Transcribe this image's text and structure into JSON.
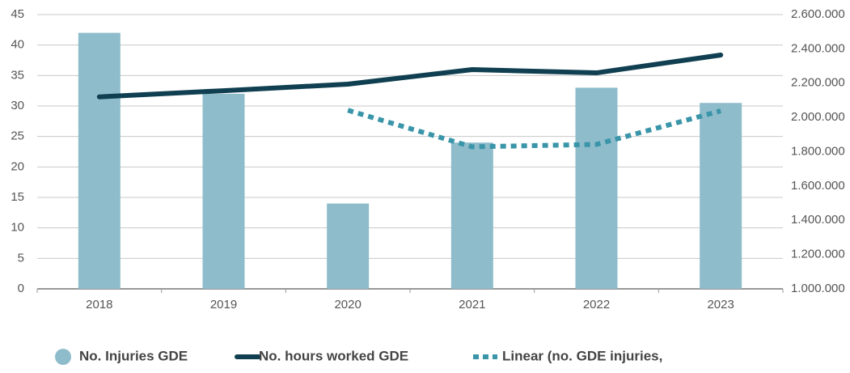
{
  "chart_data": {
    "type": "bar",
    "categories": [
      "2018",
      "2019",
      "2020",
      "2021",
      "2022",
      "2023"
    ],
    "series": [
      {
        "name": "No. Injuries GDE",
        "type": "bar",
        "color": "#8fbccb",
        "axis": "y",
        "values": [
          42,
          32,
          14,
          24,
          33,
          30.5
        ]
      },
      {
        "name": "No. hours worked GDE",
        "type": "line",
        "color": "#0f3f50",
        "axis": "y2",
        "values": [
          2120000,
          2156000,
          2194000,
          2279000,
          2260000,
          2364000
        ]
      },
      {
        "name": "Linear (no. GDE injuries,",
        "type": "dotted",
        "color": "#3a95a8",
        "axis": "y",
        "values": [
          null,
          null,
          29.3,
          23.3,
          23.7,
          29.2
        ]
      }
    ],
    "ylim": [
      0,
      45
    ],
    "yticks": [
      0,
      5,
      10,
      15,
      20,
      25,
      30,
      35,
      40,
      45
    ],
    "y2lim": [
      1000000,
      2600000
    ],
    "y2ticks": [
      {
        "value": 1000000,
        "label": "1.000.000"
      },
      {
        "value": 1200000,
        "label": "1.200.000"
      },
      {
        "value": 1400000,
        "label": "1.400.000"
      },
      {
        "value": 1600000,
        "label": "1.600.000"
      },
      {
        "value": 1800000,
        "label": "1.800.000"
      },
      {
        "value": 2000000,
        "label": "2.000.000"
      },
      {
        "value": 2200000,
        "label": "2.200.000"
      },
      {
        "value": 2400000,
        "label": "2.400.000"
      },
      {
        "value": 2600000,
        "label": "2.600.000"
      }
    ],
    "grid": true,
    "legend": "bottom"
  }
}
